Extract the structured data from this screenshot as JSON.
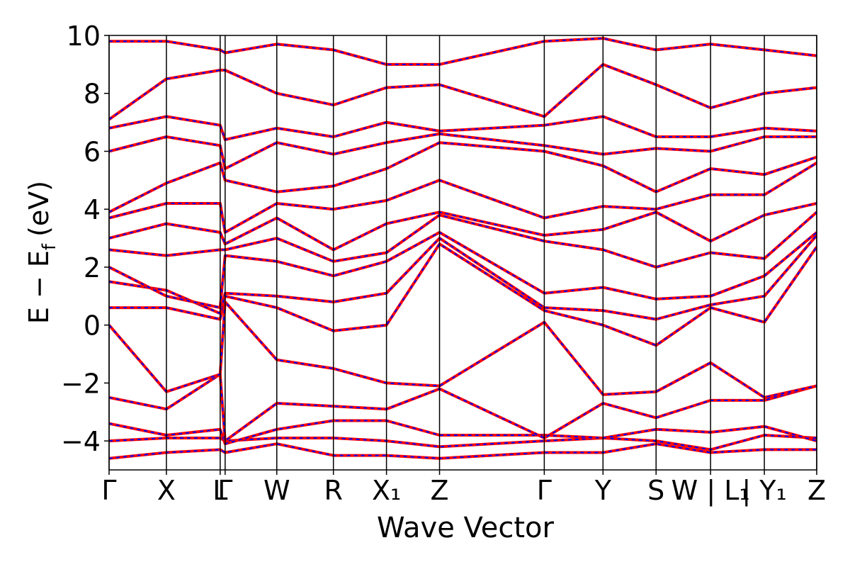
{
  "chart_data": {
    "type": "line",
    "xlabel": "Wave Vector",
    "ylabel": [
      "E − E",
      "f",
      "(eV)"
    ],
    "xlim": [
      0,
      10
    ],
    "ylim": [
      -5,
      10
    ],
    "yticks": [
      {
        "value": -4,
        "label": "−4"
      },
      {
        "value": -2,
        "label": "−2"
      },
      0,
      2,
      4,
      6,
      8,
      10
    ],
    "xticks": [
      {
        "value": 0,
        "label": "Γ"
      },
      {
        "value": 0.81,
        "label": "X"
      },
      {
        "value": 1.57,
        "label": "L"
      },
      {
        "value": 1.64,
        "label": "Γ"
      },
      {
        "value": 2.37,
        "label": "W"
      },
      {
        "value": 3.17,
        "label": "R"
      },
      {
        "value": 3.92,
        "label": "X₁"
      },
      {
        "value": 4.67,
        "label": "Z"
      },
      {
        "value": 6.15,
        "label": "Γ"
      },
      {
        "value": 6.98,
        "label": "Y"
      },
      {
        "value": 7.73,
        "label": "S"
      },
      {
        "value": 8.5,
        "label": "W | L₁"
      },
      {
        "value": 9.26,
        "label": "| Y₁"
      },
      {
        "value": 10,
        "label": "Z"
      }
    ],
    "x": [
      0,
      0.81,
      1.57,
      1.64,
      2.37,
      3.17,
      3.92,
      4.67,
      6.15,
      6.98,
      7.73,
      8.5,
      9.26,
      10
    ],
    "line_color": "#ff0000",
    "dash_color": "#0000ff",
    "series": [
      {
        "values": [
          -4.6,
          -4.4,
          -4.3,
          -4.4,
          -4.1,
          -4.5,
          -4.5,
          -4.6,
          -4.4,
          -4.4,
          -4.1,
          -4.4,
          -4.3,
          -4.3
        ]
      },
      {
        "values": [
          -4.0,
          -3.9,
          -3.9,
          -4.0,
          -3.9,
          -3.9,
          -4.0,
          -4.2,
          -4.0,
          -3.9,
          -4.0,
          -4.3,
          -3.8,
          -3.9
        ]
      },
      {
        "values": [
          -3.4,
          -3.8,
          -3.6,
          -4.1,
          -3.6,
          -3.3,
          -3.3,
          -3.8,
          -3.8,
          -3.9,
          -3.6,
          -3.7,
          -3.5,
          -4.0
        ]
      },
      {
        "values": [
          -2.5,
          -2.9,
          -1.7,
          -4.0,
          -2.7,
          -2.8,
          -2.9,
          -2.2,
          -3.9,
          -2.7,
          -3.2,
          -2.6,
          -2.6,
          -2.1
        ]
      },
      {
        "values": [
          0.0,
          -2.3,
          -1.7,
          0.8,
          -1.2,
          -1.5,
          -2.0,
          -2.1,
          0.1,
          -2.4,
          -2.3,
          -1.3,
          -2.5,
          -2.1
        ]
      },
      {
        "values": [
          0.6,
          0.6,
          0.2,
          1.0,
          0.6,
          -0.2,
          0.0,
          2.8,
          0.5,
          0.0,
          -0.7,
          0.6,
          0.1,
          2.7
        ]
      },
      {
        "values": [
          1.5,
          1.2,
          0.4,
          1.1,
          1.0,
          0.8,
          1.1,
          3.0,
          0.6,
          0.5,
          0.2,
          0.7,
          1.0,
          3.1
        ]
      },
      {
        "values": [
          2.0,
          1.0,
          0.6,
          2.4,
          2.2,
          1.7,
          2.2,
          3.2,
          1.1,
          1.3,
          0.9,
          1.0,
          1.7,
          3.2
        ]
      },
      {
        "values": [
          2.6,
          2.4,
          2.6,
          2.6,
          3.0,
          2.2,
          2.5,
          3.8,
          2.9,
          2.6,
          2.0,
          2.5,
          2.3,
          3.9
        ]
      },
      {
        "values": [
          3.0,
          3.5,
          3.2,
          2.8,
          3.7,
          2.6,
          3.5,
          3.9,
          3.1,
          3.3,
          3.9,
          2.9,
          3.8,
          4.2
        ]
      },
      {
        "values": [
          3.7,
          4.2,
          4.2,
          3.2,
          4.2,
          4.0,
          4.3,
          5.0,
          3.7,
          4.1,
          4.0,
          4.5,
          4.5,
          5.6
        ]
      },
      {
        "values": [
          3.9,
          4.9,
          5.6,
          5.0,
          4.6,
          4.8,
          5.4,
          6.3,
          6.0,
          5.5,
          4.6,
          5.4,
          5.2,
          5.8
        ]
      },
      {
        "values": [
          6.0,
          6.5,
          6.2,
          5.4,
          6.3,
          5.9,
          6.3,
          6.6,
          6.2,
          5.9,
          6.1,
          6.0,
          6.5,
          6.5
        ]
      },
      {
        "values": [
          6.8,
          7.2,
          6.9,
          6.4,
          6.8,
          6.5,
          7.0,
          6.7,
          6.9,
          7.2,
          6.5,
          6.5,
          6.8,
          6.7
        ]
      },
      {
        "values": [
          7.1,
          8.5,
          8.8,
          8.8,
          8.0,
          7.6,
          8.2,
          8.3,
          7.2,
          9.0,
          8.3,
          7.5,
          8.0,
          8.2
        ]
      },
      {
        "values": [
          9.8,
          9.8,
          9.5,
          9.4,
          9.7,
          9.5,
          9.0,
          9.0,
          9.8,
          9.9,
          9.5,
          9.7,
          9.5,
          9.3
        ]
      }
    ]
  }
}
